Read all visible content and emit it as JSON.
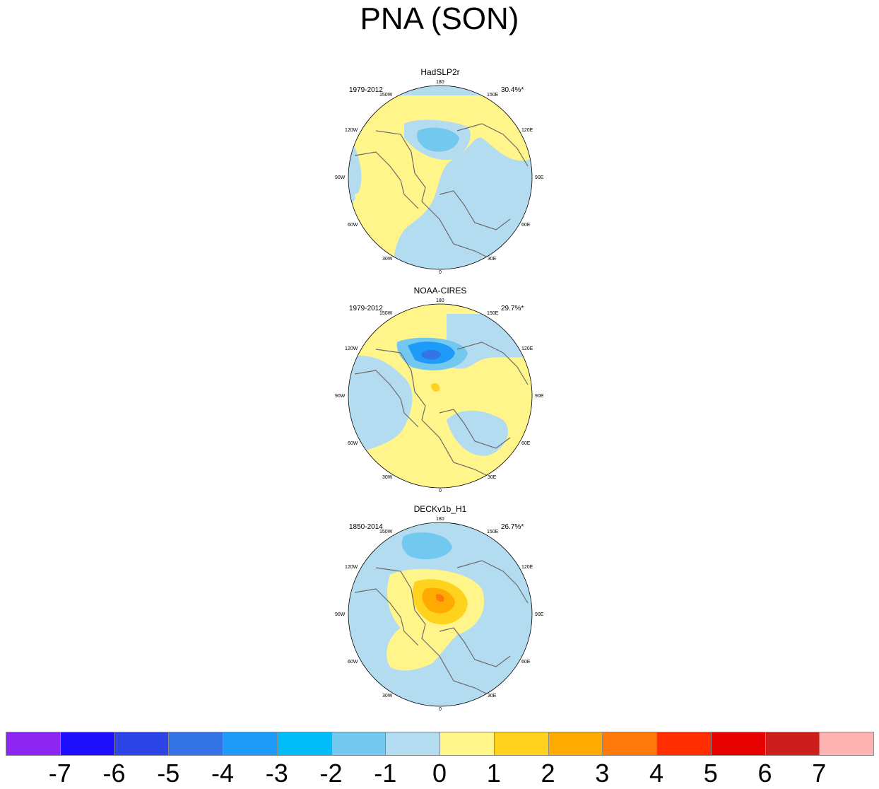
{
  "title": "PNA (SON)",
  "panels": [
    {
      "name": "HadSLP2r",
      "period": "1979-2012",
      "variance": "30.4%*"
    },
    {
      "name": "NOAA-CIRES",
      "period": "1979-2012",
      "variance": "29.7%*"
    },
    {
      "name": "DECKv1b_H1",
      "period": "1850-2014",
      "variance": "26.7%*"
    }
  ],
  "lon_labels": {
    "top": "180",
    "bottom": "0",
    "left_upper": "120W",
    "left_mid": "90W",
    "left_lower": "60W",
    "right_upper": "120E",
    "right_mid": "90E",
    "right_lower": "60E",
    "top_left": "150W",
    "top_right": "150E",
    "bottom_left": "30W",
    "bottom_right": "30E"
  },
  "colorbar": {
    "labels": [
      "-7",
      "-6",
      "-5",
      "-4",
      "-3",
      "-2",
      "-1",
      "0",
      "1",
      "2",
      "3",
      "4",
      "5",
      "6",
      "7"
    ],
    "colors": [
      "#8c26f0",
      "#1e0dfa",
      "#2d44e6",
      "#3474e6",
      "#1e9af8",
      "#00bdfa",
      "#73c8f0",
      "#b4dcf0",
      "#fff58a",
      "#ffd21e",
      "#ffaa00",
      "#ff780a",
      "#ff2d00",
      "#e60000",
      "#cd1e1e",
      "#ffb4b4"
    ]
  },
  "map_colors": {
    "land_outline": "#6b6b6b",
    "neg1": "#b4dcf0",
    "pos1": "#fff58a"
  }
}
